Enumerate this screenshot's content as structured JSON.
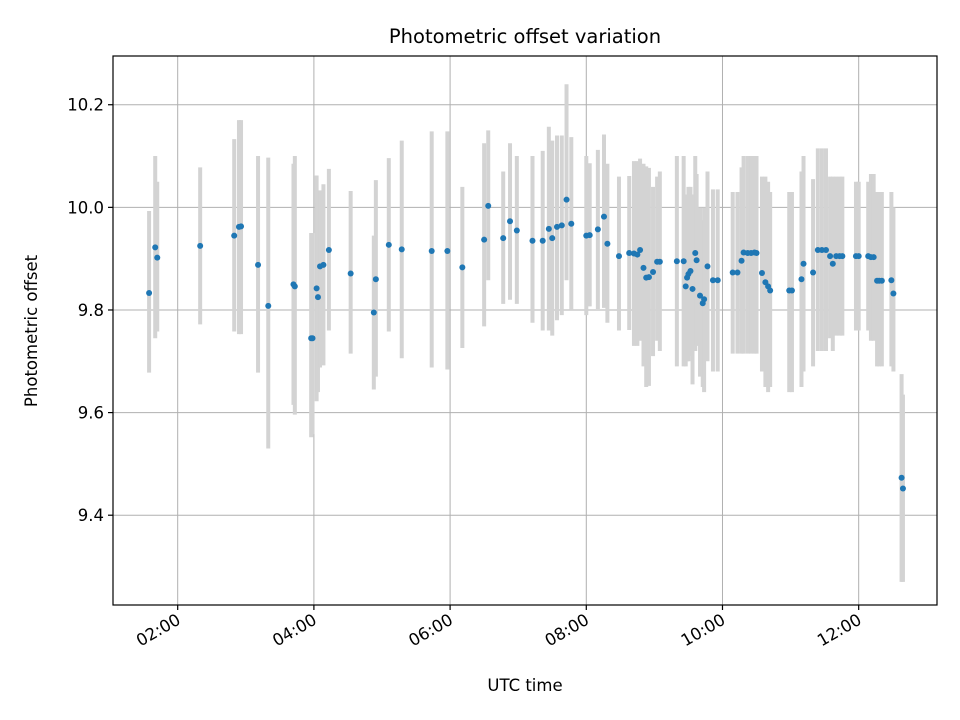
{
  "chart_data": {
    "type": "scatter",
    "title": "Photometric offset variation",
    "xlabel": "UTC time",
    "ylabel": "Photometric offset",
    "xlim": [
      1.05,
      13.15
    ],
    "ylim": [
      9.225,
      10.295
    ],
    "grid": true,
    "x_ticks": [
      2,
      4,
      6,
      8,
      10,
      12
    ],
    "x_tick_labels": [
      "02:00",
      "04:00",
      "06:00",
      "08:00",
      "10:00",
      "12:00"
    ],
    "y_ticks": [
      9.4,
      9.6,
      9.8,
      10.0,
      10.2
    ],
    "y_tick_labels": [
      "9.4",
      "9.6",
      "9.8",
      "10.0",
      "10.2"
    ],
    "colors": {
      "point": "#1f77b4",
      "errorbar": "#d3d3d3",
      "grid": "#b0b0b0"
    },
    "series": [
      {
        "name": "offset",
        "x": [
          1.58,
          1.67,
          1.7,
          2.33,
          2.83,
          2.9,
          2.93,
          3.18,
          3.33,
          3.7,
          3.72,
          3.96,
          3.98,
          4.04,
          4.06,
          4.09,
          4.14,
          4.22,
          4.54,
          4.88,
          4.91,
          5.1,
          5.29,
          5.73,
          5.96,
          6.18,
          6.5,
          6.56,
          6.78,
          6.88,
          6.98,
          7.21,
          7.36,
          7.45,
          7.5,
          7.57,
          7.64,
          7.71,
          7.78,
          8.0,
          8.05,
          8.17,
          8.26,
          8.31,
          8.48,
          8.63,
          8.7,
          8.75,
          8.79,
          8.84,
          8.88,
          8.92,
          8.98,
          9.04,
          9.08,
          9.33,
          9.43,
          9.46,
          9.48,
          9.5,
          9.53,
          9.56,
          9.6,
          9.62,
          9.67,
          9.71,
          9.73,
          9.78,
          9.86,
          9.93,
          10.15,
          10.22,
          10.28,
          10.31,
          10.37,
          10.42,
          10.47,
          10.5,
          10.58,
          10.63,
          10.67,
          10.7,
          10.98,
          11.02,
          11.16,
          11.19,
          11.33,
          11.4,
          11.46,
          11.52,
          11.58,
          11.62,
          11.67,
          11.72,
          11.76,
          11.96,
          12.0,
          12.14,
          12.18,
          12.22,
          12.27,
          12.3,
          12.34,
          12.48,
          12.51,
          12.63,
          12.65
        ],
        "values": [
          9.833,
          9.922,
          9.902,
          9.925,
          9.945,
          9.962,
          9.963,
          9.888,
          9.808,
          9.85,
          9.846,
          9.745,
          9.745,
          9.842,
          9.825,
          9.885,
          9.888,
          9.917,
          9.871,
          9.795,
          9.86,
          9.927,
          9.918,
          9.915,
          9.915,
          9.883,
          9.937,
          10.003,
          9.94,
          9.973,
          9.955,
          9.935,
          9.935,
          9.958,
          9.94,
          9.962,
          9.965,
          10.015,
          9.968,
          9.945,
          9.946,
          9.957,
          9.982,
          9.929,
          9.905,
          9.911,
          9.91,
          9.908,
          9.917,
          9.882,
          9.863,
          9.864,
          9.874,
          9.894,
          9.894,
          9.895,
          9.895,
          9.846,
          9.863,
          9.87,
          9.876,
          9.841,
          9.911,
          9.897,
          9.828,
          9.813,
          9.821,
          9.885,
          9.858,
          9.858,
          9.873,
          9.873,
          9.896,
          9.912,
          9.911,
          9.911,
          9.912,
          9.911,
          9.872,
          9.854,
          9.846,
          9.838,
          9.838,
          9.838,
          9.86,
          9.89,
          9.873,
          9.917,
          9.917,
          9.917,
          9.905,
          9.89,
          9.905,
          9.905,
          9.905,
          9.905,
          9.905,
          9.905,
          9.903,
          9.903,
          9.857,
          9.857,
          9.857,
          9.858,
          9.832,
          9.473,
          9.452
        ],
        "err_low": [
          9.678,
          9.745,
          9.758,
          9.772,
          9.758,
          9.753,
          9.753,
          9.678,
          9.53,
          9.615,
          9.596,
          9.552,
          9.558,
          9.622,
          9.64,
          9.688,
          9.692,
          9.76,
          9.715,
          9.645,
          9.67,
          9.758,
          9.706,
          9.688,
          9.684,
          9.726,
          9.768,
          9.858,
          9.812,
          9.82,
          9.812,
          9.775,
          9.76,
          9.76,
          9.75,
          9.78,
          9.79,
          9.858,
          9.8,
          9.79,
          9.807,
          9.802,
          9.804,
          9.775,
          9.76,
          9.761,
          9.73,
          9.73,
          9.74,
          9.69,
          9.65,
          9.652,
          9.71,
          9.74,
          9.72,
          9.69,
          9.69,
          9.69,
          9.7,
          9.7,
          9.71,
          9.655,
          9.72,
          9.73,
          9.67,
          9.65,
          9.64,
          9.7,
          9.68,
          9.68,
          9.715,
          9.715,
          9.715,
          9.715,
          9.715,
          9.715,
          9.715,
          9.715,
          9.68,
          9.65,
          9.64,
          9.65,
          9.64,
          9.64,
          9.65,
          9.68,
          9.69,
          9.72,
          9.72,
          9.72,
          9.745,
          9.72,
          9.75,
          9.75,
          9.75,
          9.76,
          9.76,
          9.76,
          9.74,
          9.74,
          9.69,
          9.69,
          9.69,
          9.69,
          9.68,
          9.27,
          9.27
        ],
        "err_high": [
          9.993,
          10.1,
          10.05,
          10.078,
          10.133,
          10.17,
          10.17,
          10.1,
          10.097,
          10.085,
          10.1,
          9.95,
          9.95,
          10.062,
          10.01,
          10.033,
          10.045,
          10.075,
          10.032,
          9.945,
          10.053,
          10.096,
          10.13,
          10.148,
          10.148,
          10.04,
          10.125,
          10.15,
          10.07,
          10.125,
          10.1,
          10.1,
          10.11,
          10.157,
          10.13,
          10.14,
          10.14,
          10.24,
          10.137,
          10.1,
          10.086,
          10.112,
          10.142,
          10.085,
          10.06,
          10.061,
          10.09,
          10.09,
          10.095,
          10.085,
          10.08,
          10.077,
          10.04,
          10.06,
          10.07,
          10.1,
          10.1,
          10.005,
          10.025,
          10.04,
          10.04,
          10.025,
          10.1,
          10.065,
          10.0,
          9.975,
          10.0,
          10.07,
          10.035,
          10.035,
          10.03,
          10.03,
          10.078,
          10.1,
          10.1,
          10.1,
          10.1,
          10.1,
          10.06,
          10.06,
          10.05,
          10.03,
          10.03,
          10.03,
          10.07,
          10.1,
          10.055,
          10.115,
          10.115,
          10.115,
          10.06,
          10.06,
          10.06,
          10.06,
          10.06,
          10.05,
          10.05,
          10.05,
          10.065,
          10.065,
          10.03,
          10.03,
          10.03,
          10.03,
          10.0,
          9.675,
          9.635
        ]
      }
    ]
  }
}
